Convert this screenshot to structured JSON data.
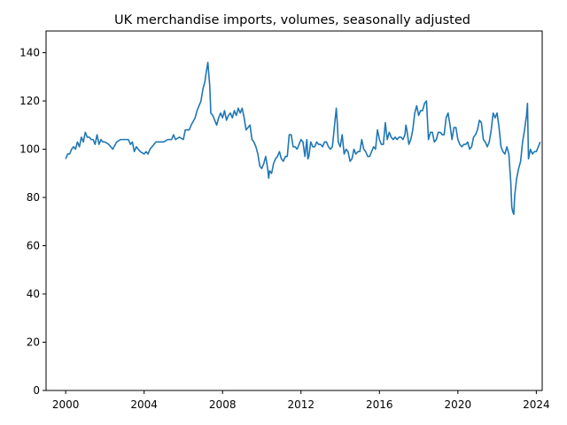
{
  "chart_data": {
    "type": "line",
    "title": "UK merchandise imports, volumes, seasonally adjusted",
    "xlabel": "",
    "ylabel": "",
    "xlim": [
      1999.0,
      2024.3
    ],
    "ylim": [
      0,
      149
    ],
    "x_ticks": [
      2000,
      2004,
      2008,
      2012,
      2016,
      2020,
      2024
    ],
    "y_ticks": [
      0,
      20,
      40,
      60,
      80,
      100,
      120,
      140
    ],
    "grid": false,
    "line_color": "#1f77b4",
    "series": [
      {
        "points": [
          [
            2000.0,
            96
          ],
          [
            2000.1,
            98
          ],
          [
            2000.2,
            98
          ],
          [
            2000.3,
            100
          ],
          [
            2000.4,
            101
          ],
          [
            2000.5,
            100
          ],
          [
            2000.6,
            103
          ],
          [
            2000.7,
            101
          ],
          [
            2000.8,
            105
          ],
          [
            2000.9,
            103
          ],
          [
            2001.0,
            107
          ],
          [
            2001.1,
            105
          ],
          [
            2001.2,
            105
          ],
          [
            2001.3,
            104
          ],
          [
            2001.4,
            104
          ],
          [
            2001.5,
            102
          ],
          [
            2001.6,
            106
          ],
          [
            2001.7,
            102
          ],
          [
            2001.8,
            104
          ],
          [
            2001.9,
            103
          ],
          [
            2002.0,
            103
          ],
          [
            2002.2,
            102
          ],
          [
            2002.4,
            100
          ],
          [
            2002.6,
            103
          ],
          [
            2002.8,
            104
          ],
          [
            2003.0,
            104
          ],
          [
            2003.2,
            104
          ],
          [
            2003.3,
            102
          ],
          [
            2003.4,
            103
          ],
          [
            2003.5,
            99
          ],
          [
            2003.6,
            101
          ],
          [
            2003.8,
            99
          ],
          [
            2004.0,
            98
          ],
          [
            2004.1,
            99
          ],
          [
            2004.2,
            98
          ],
          [
            2004.3,
            100
          ],
          [
            2004.5,
            102
          ],
          [
            2004.6,
            103
          ],
          [
            2004.8,
            103
          ],
          [
            2005.0,
            103
          ],
          [
            2005.2,
            104
          ],
          [
            2005.4,
            104
          ],
          [
            2005.5,
            106
          ],
          [
            2005.6,
            104
          ],
          [
            2005.8,
            105
          ],
          [
            2006.0,
            104
          ],
          [
            2006.1,
            108
          ],
          [
            2006.3,
            108
          ],
          [
            2006.4,
            110
          ],
          [
            2006.6,
            113
          ],
          [
            2006.7,
            116
          ],
          [
            2006.8,
            118
          ],
          [
            2006.9,
            120
          ],
          [
            2007.0,
            125
          ],
          [
            2007.1,
            128
          ],
          [
            2007.15,
            131
          ],
          [
            2007.25,
            136
          ],
          [
            2007.35,
            126
          ],
          [
            2007.4,
            115
          ],
          [
            2007.5,
            114
          ],
          [
            2007.6,
            112
          ],
          [
            2007.7,
            110
          ],
          [
            2007.8,
            113
          ],
          [
            2007.9,
            115
          ],
          [
            2008.0,
            113
          ],
          [
            2008.1,
            116
          ],
          [
            2008.2,
            112
          ],
          [
            2008.3,
            114
          ],
          [
            2008.4,
            115
          ],
          [
            2008.5,
            113
          ],
          [
            2008.6,
            116
          ],
          [
            2008.7,
            114
          ],
          [
            2008.8,
            117
          ],
          [
            2008.9,
            115
          ],
          [
            2009.0,
            117
          ],
          [
            2009.1,
            113
          ],
          [
            2009.2,
            108
          ],
          [
            2009.3,
            109
          ],
          [
            2009.4,
            110
          ],
          [
            2009.5,
            104
          ],
          [
            2009.6,
            103
          ],
          [
            2009.7,
            101
          ],
          [
            2009.8,
            98
          ],
          [
            2009.9,
            93
          ],
          [
            2010.0,
            92
          ],
          [
            2010.1,
            94
          ],
          [
            2010.2,
            97
          ],
          [
            2010.3,
            92
          ],
          [
            2010.35,
            88
          ],
          [
            2010.4,
            91
          ],
          [
            2010.5,
            90
          ],
          [
            2010.6,
            94
          ],
          [
            2010.7,
            96
          ],
          [
            2010.8,
            97
          ],
          [
            2010.9,
            99
          ],
          [
            2011.0,
            96
          ],
          [
            2011.1,
            95
          ],
          [
            2011.2,
            97
          ],
          [
            2011.3,
            97
          ],
          [
            2011.4,
            106
          ],
          [
            2011.5,
            106
          ],
          [
            2011.6,
            101
          ],
          [
            2011.7,
            101
          ],
          [
            2011.8,
            100
          ],
          [
            2011.9,
            102
          ],
          [
            2012.0,
            104
          ],
          [
            2012.1,
            103
          ],
          [
            2012.2,
            97
          ],
          [
            2012.3,
            104
          ],
          [
            2012.35,
            96
          ],
          [
            2012.4,
            97
          ],
          [
            2012.5,
            103
          ],
          [
            2012.6,
            101
          ],
          [
            2012.7,
            101
          ],
          [
            2012.8,
            103
          ],
          [
            2012.9,
            102
          ],
          [
            2013.0,
            102
          ],
          [
            2013.1,
            101
          ],
          [
            2013.2,
            103
          ],
          [
            2013.3,
            103
          ],
          [
            2013.4,
            101
          ],
          [
            2013.5,
            100
          ],
          [
            2013.6,
            101
          ],
          [
            2013.7,
            109
          ],
          [
            2013.8,
            117
          ],
          [
            2013.85,
            111
          ],
          [
            2013.9,
            103
          ],
          [
            2014.0,
            101
          ],
          [
            2014.1,
            106
          ],
          [
            2014.2,
            98
          ],
          [
            2014.3,
            100
          ],
          [
            2014.4,
            99
          ],
          [
            2014.5,
            95
          ],
          [
            2014.6,
            96
          ],
          [
            2014.7,
            100
          ],
          [
            2014.8,
            98
          ],
          [
            2014.9,
            99
          ],
          [
            2015.0,
            99
          ],
          [
            2015.1,
            104
          ],
          [
            2015.2,
            100
          ],
          [
            2015.3,
            99
          ],
          [
            2015.4,
            97
          ],
          [
            2015.5,
            97
          ],
          [
            2015.6,
            99
          ],
          [
            2015.7,
            101
          ],
          [
            2015.8,
            100
          ],
          [
            2015.9,
            108
          ],
          [
            2016.0,
            104
          ],
          [
            2016.1,
            102
          ],
          [
            2016.2,
            102
          ],
          [
            2016.3,
            111
          ],
          [
            2016.4,
            104
          ],
          [
            2016.5,
            107
          ],
          [
            2016.6,
            105
          ],
          [
            2016.7,
            104
          ],
          [
            2016.8,
            105
          ],
          [
            2016.9,
            104
          ],
          [
            2017.0,
            105
          ],
          [
            2017.1,
            105
          ],
          [
            2017.2,
            104
          ],
          [
            2017.3,
            106
          ],
          [
            2017.35,
            110
          ],
          [
            2017.4,
            108
          ],
          [
            2017.5,
            102
          ],
          [
            2017.6,
            104
          ],
          [
            2017.7,
            108
          ],
          [
            2017.8,
            115
          ],
          [
            2017.9,
            118
          ],
          [
            2018.0,
            114
          ],
          [
            2018.1,
            116
          ],
          [
            2018.2,
            116
          ],
          [
            2018.3,
            119
          ],
          [
            2018.4,
            120
          ],
          [
            2018.5,
            104
          ],
          [
            2018.6,
            107
          ],
          [
            2018.7,
            107
          ],
          [
            2018.8,
            103
          ],
          [
            2018.9,
            104
          ],
          [
            2019.0,
            107
          ],
          [
            2019.1,
            107
          ],
          [
            2019.2,
            106
          ],
          [
            2019.3,
            106
          ],
          [
            2019.4,
            113
          ],
          [
            2019.5,
            115
          ],
          [
            2019.6,
            110
          ],
          [
            2019.7,
            104
          ],
          [
            2019.8,
            109
          ],
          [
            2019.9,
            109
          ],
          [
            2020.0,
            104
          ],
          [
            2020.1,
            102
          ],
          [
            2020.2,
            101
          ],
          [
            2020.3,
            102
          ],
          [
            2020.4,
            102
          ],
          [
            2020.5,
            103
          ],
          [
            2020.6,
            100
          ],
          [
            2020.7,
            101
          ],
          [
            2020.8,
            105
          ],
          [
            2020.9,
            106
          ],
          [
            2021.0,
            108
          ],
          [
            2021.1,
            112
          ],
          [
            2021.2,
            111
          ],
          [
            2021.3,
            104
          ],
          [
            2021.4,
            103
          ],
          [
            2021.5,
            101
          ],
          [
            2021.6,
            103
          ],
          [
            2021.7,
            108
          ],
          [
            2021.8,
            115
          ],
          [
            2021.9,
            113
          ],
          [
            2022.0,
            115
          ],
          [
            2022.1,
            109
          ],
          [
            2022.2,
            101
          ],
          [
            2022.3,
            99
          ],
          [
            2022.4,
            98
          ],
          [
            2022.5,
            101
          ],
          [
            2022.6,
            98
          ],
          [
            2022.7,
            86
          ],
          [
            2022.75,
            76
          ],
          [
            2022.8,
            74
          ],
          [
            2022.85,
            73
          ],
          [
            2022.9,
            81
          ],
          [
            2023.0,
            88
          ],
          [
            2023.1,
            92
          ],
          [
            2023.2,
            95
          ],
          [
            2023.3,
            103
          ],
          [
            2023.4,
            108
          ],
          [
            2023.5,
            114
          ],
          [
            2023.55,
            119
          ],
          [
            2023.6,
            96
          ],
          [
            2023.7,
            100
          ],
          [
            2023.8,
            98
          ],
          [
            2023.9,
            99
          ],
          [
            2024.0,
            99
          ],
          [
            2024.1,
            101
          ],
          [
            2024.2,
            103
          ]
        ]
      }
    ]
  }
}
